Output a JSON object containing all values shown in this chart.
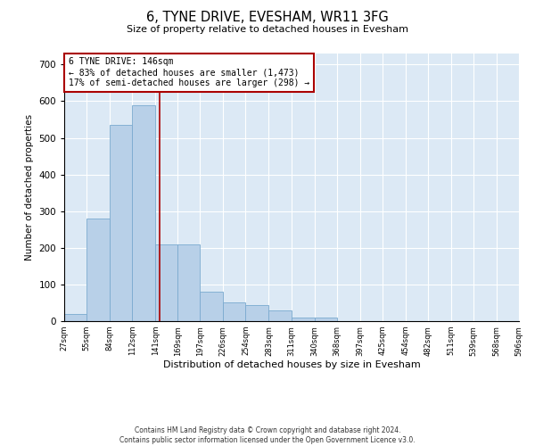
{
  "title": "6, TYNE DRIVE, EVESHAM, WR11 3FG",
  "subtitle": "Size of property relative to detached houses in Evesham",
  "xlabel": "Distribution of detached houses by size in Evesham",
  "ylabel": "Number of detached properties",
  "footer_line1": "Contains HM Land Registry data © Crown copyright and database right 2024.",
  "footer_line2": "Contains public sector information licensed under the Open Government Licence v3.0.",
  "annotation_line1": "6 TYNE DRIVE: 146sqm",
  "annotation_line2": "← 83% of detached houses are smaller (1,473)",
  "annotation_line3": "17% of semi-detached houses are larger (298) →",
  "property_size": 146,
  "bar_color": "#b8d0e8",
  "bar_edge_color": "#7aaacf",
  "vline_color": "#aa0000",
  "background_color": "#dce9f5",
  "tick_labels": [
    "27sqm",
    "55sqm",
    "84sqm",
    "112sqm",
    "141sqm",
    "169sqm",
    "197sqm",
    "226sqm",
    "254sqm",
    "283sqm",
    "311sqm",
    "340sqm",
    "368sqm",
    "397sqm",
    "425sqm",
    "454sqm",
    "482sqm",
    "511sqm",
    "539sqm",
    "568sqm",
    "596sqm"
  ],
  "bar_values": [
    20,
    280,
    535,
    590,
    210,
    210,
    80,
    50,
    45,
    30,
    10,
    10,
    0,
    0,
    0,
    0,
    0,
    0,
    0,
    0
  ],
  "bin_edges": [
    27,
    55,
    84,
    112,
    141,
    169,
    197,
    226,
    254,
    283,
    311,
    340,
    368,
    397,
    425,
    454,
    482,
    511,
    539,
    568,
    596
  ],
  "ylim": [
    0,
    730
  ],
  "yticks": [
    0,
    100,
    200,
    300,
    400,
    500,
    600,
    700
  ]
}
